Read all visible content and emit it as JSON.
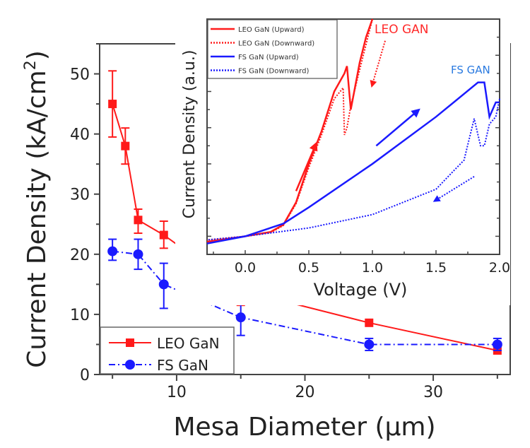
{
  "chart_data": [
    {
      "type": "line",
      "xlabel": "Mesa Diameter (μm)",
      "ylabel_main": "Current Density (kA/cm",
      "ylabel_sup": "2",
      "ylabel_close": ")",
      "xlim": [
        4,
        36
      ],
      "ylim": [
        0,
        55
      ],
      "x_ticks": [
        10,
        20,
        30
      ],
      "y_ticks": [
        0,
        10,
        20,
        30,
        40,
        50
      ],
      "legend_position": "bottom-left",
      "series": [
        {
          "name": "LEO GaN",
          "color": "#ff1a1a",
          "marker": "square",
          "line": "solid",
          "x": [
            5,
            6,
            7,
            9,
            15,
            25,
            35
          ],
          "y": [
            45,
            38,
            25.7,
            23.2,
            14,
            8.6,
            4
          ],
          "err_low": [
            39.5,
            35,
            23.5,
            21,
            11.5,
            8.6,
            4
          ],
          "err_high": [
            50.5,
            41,
            27.5,
            25.5,
            16,
            8.6,
            4
          ]
        },
        {
          "name": "FS GaN",
          "color": "#1a1aff",
          "marker": "circle",
          "line": "dash-dot",
          "x": [
            5,
            7,
            9,
            15,
            25,
            35
          ],
          "y": [
            20.5,
            20,
            15,
            9.5,
            5,
            5
          ],
          "err_low": [
            19,
            17.5,
            11,
            6.5,
            4,
            4
          ],
          "err_high": [
            22.5,
            22.5,
            18.5,
            12.5,
            6,
            6
          ]
        }
      ]
    },
    {
      "type": "line",
      "role": "inset",
      "xlabel": "Voltage (V)",
      "ylabel": "Current Density (a.u.)",
      "xlim": [
        -0.3,
        2.0
      ],
      "ylim": [
        -0.5,
        6
      ],
      "x_ticks": [
        "0.0",
        "0.5",
        "1.0",
        "1.5",
        "2.0"
      ],
      "legend_position": "top-left",
      "annotations": [
        {
          "text": "LEO GAN",
          "color": "#ff2a2a"
        },
        {
          "text": "FS GAN",
          "color": "#2a7ae0"
        }
      ],
      "series": [
        {
          "name": "LEO GaN (Upward)",
          "color": "#ff1a1a",
          "line": "solid",
          "x": [
            -0.3,
            0,
            0.2,
            0.3,
            0.4,
            0.5,
            0.6,
            0.7,
            0.78,
            0.8,
            0.83,
            0.9,
            0.95,
            1.0
          ],
          "y": [
            -0.15,
            0,
            0.12,
            0.32,
            0.94,
            2.0,
            2.9,
            4.0,
            4.5,
            4.7,
            3.5,
            4.8,
            5.5,
            6.0
          ]
        },
        {
          "name": "LEO GaN (Downward)",
          "color": "#ff1a1a",
          "line": "dotted",
          "x": [
            1.0,
            0.95,
            0.9,
            0.83,
            0.8,
            0.78,
            0.77,
            0.7,
            0.6,
            0.5,
            0.4,
            0.3,
            0.2,
            0,
            -0.3
          ],
          "y": [
            6.0,
            5.3,
            4.6,
            3.6,
            3.0,
            2.8,
            4.1,
            3.8,
            2.8,
            1.9,
            0.9,
            0.3,
            0.1,
            0,
            -0.1
          ]
        },
        {
          "name": "FS GaN (Upward)",
          "color": "#1a1aff",
          "line": "solid",
          "x": [
            -0.3,
            0,
            0.3,
            0.5,
            1.0,
            1.5,
            1.83,
            1.88,
            1.92,
            1.97,
            2.0
          ],
          "y": [
            -0.2,
            0,
            0.35,
            0.8,
            2.0,
            3.3,
            4.25,
            4.25,
            3.3,
            3.7,
            3.7
          ]
        },
        {
          "name": "FS GaN (Downward)",
          "color": "#1a1aff",
          "line": "dotted",
          "x": [
            2.0,
            1.97,
            1.92,
            1.88,
            1.85,
            1.8,
            1.72,
            1.65,
            1.5,
            1.0,
            0.5,
            0,
            -0.3
          ],
          "y": [
            3.8,
            3.3,
            3.1,
            2.5,
            2.5,
            3.25,
            2.1,
            1.85,
            1.3,
            0.6,
            0.23,
            0,
            -0.1
          ]
        }
      ]
    }
  ]
}
